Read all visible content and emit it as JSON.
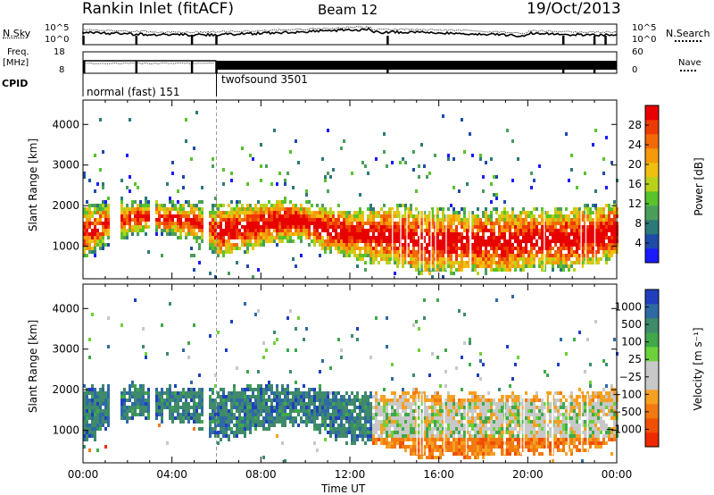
{
  "header": {
    "site": "Rankin Inlet (fitACF)",
    "beam": "Beam 12",
    "date": "19/Oct/2013"
  },
  "labels": {
    "nsky": "N.Sky",
    "nsearch": "N.Search",
    "freq": "Freq.",
    "mhz": "[MHz]",
    "nave": "Nave",
    "cpid": "CPID",
    "ns_top": "10^5",
    "ns_bot": "10^0",
    "freq_top": "18",
    "freq_bot": "8",
    "nave_top": "60",
    "nave_bot": "0"
  },
  "cpid_segments": [
    {
      "name": "normal (fast) 151",
      "start_hour": 0,
      "end_hour": 6
    },
    {
      "name": "twofsound 3501",
      "start_hour": 6,
      "end_hour": 24
    }
  ],
  "chart_data": [
    {
      "type": "heatmap",
      "title": "",
      "xlabel": "Time UT",
      "ylabel": "Slant Range [km]",
      "xlim_hours": [
        0,
        24
      ],
      "ylim": [
        200,
        4600
      ],
      "x_ticks": [
        "00:00",
        "04:00",
        "08:00",
        "12:00",
        "16:00",
        "20:00",
        "00:00"
      ],
      "y_ticks": [
        1000,
        2000,
        3000,
        4000
      ],
      "colorbar": {
        "label": "Power [dB]",
        "ticks": [
          4,
          8,
          12,
          16,
          20,
          24,
          28
        ],
        "range": [
          0,
          32
        ],
        "colors": [
          "#1a1aff",
          "#1f4aa8",
          "#2b7a78",
          "#4b9e5a",
          "#58c32a",
          "#b8d21a",
          "#f0c010",
          "#f59a0a",
          "#f26a06",
          "#ee3a03",
          "#e80000"
        ]
      },
      "band": {
        "upper_edge_km": [
          2100,
          2100,
          2150,
          2150,
          2100,
          2100,
          2000,
          2050,
          2100,
          2150,
          2050,
          2000,
          1900,
          1950,
          2000,
          1950,
          1900,
          1850,
          1900,
          1900,
          1900,
          1900,
          1950,
          2000,
          2100
        ],
        "lower_edge_km": [
          700,
          1100,
          1300,
          1400,
          1300,
          1200,
          800,
          900,
          1100,
          1200,
          1200,
          900,
          800,
          700,
          600,
          400,
          400,
          400,
          400,
          400,
          500,
          500,
          500,
          600,
          800
        ]
      }
    },
    {
      "type": "heatmap",
      "title": "",
      "xlabel": "Time UT",
      "ylabel": "Slant Range [km]",
      "xlim_hours": [
        0,
        24
      ],
      "ylim": [
        200,
        4600
      ],
      "x_ticks": [
        "00:00",
        "04:00",
        "08:00",
        "12:00",
        "16:00",
        "20:00",
        "00:00"
      ],
      "y_ticks": [
        1000,
        2000,
        3000,
        4000
      ],
      "colorbar": {
        "label": "Velocity [m s⁻¹]",
        "ticks": [
          "1000",
          "500",
          "100",
          "25",
          "−25",
          "−100",
          "−500",
          "−1000"
        ],
        "colors": [
          "#1f3fbf",
          "#2f6aa5",
          "#3e8a6a",
          "#3fa84a",
          "#6cd13a",
          "#c8c8c8",
          "#c8c8c8",
          "#f5a020",
          "#f37a10",
          "#f05005",
          "#ee2a00"
        ]
      }
    }
  ]
}
